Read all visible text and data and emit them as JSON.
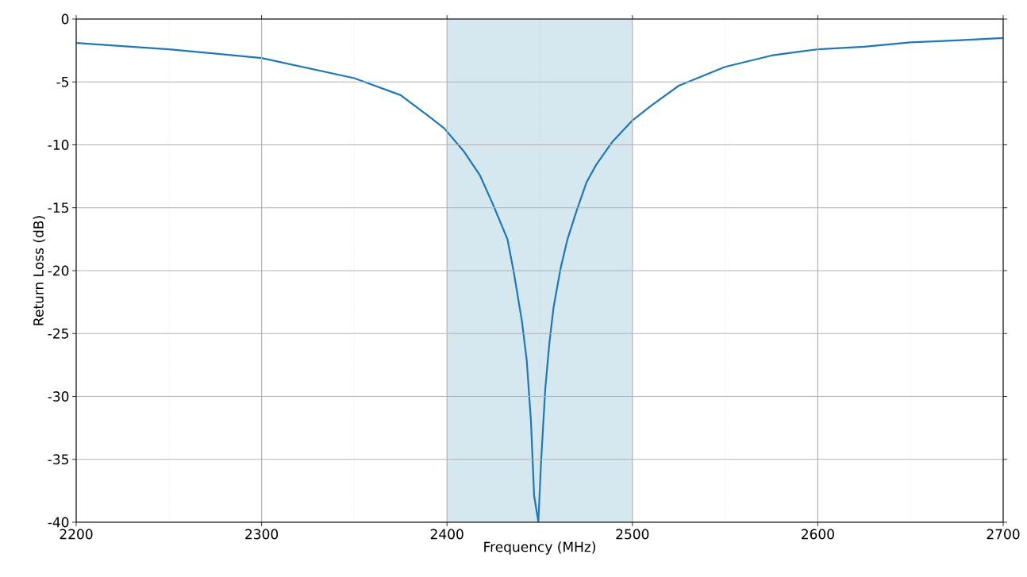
{
  "chart_data": {
    "type": "line",
    "xlabel": "Frequency (MHz)",
    "ylabel": "Return Loss (dB)",
    "xlim": [
      2200,
      2700
    ],
    "ylim": [
      -40,
      0
    ],
    "xticks": [
      2200,
      2300,
      2400,
      2500,
      2600,
      2700
    ],
    "yticks": [
      -40,
      -35,
      -30,
      -25,
      -20,
      -15,
      -10,
      -5,
      0
    ],
    "grid": true,
    "bands": [
      {
        "axis": "x",
        "from": 2400,
        "to": 2500,
        "color": "#d5e8ef"
      }
    ],
    "series": [
      {
        "color": "#1f77b4",
        "x": [
          2200,
          2250,
          2300,
          2350,
          2375,
          2390,
          2398.6,
          2409,
          2417.7,
          2424.7,
          2432.6,
          2436,
          2440.4,
          2443,
          2445.3,
          2447,
          2449.3,
          2450.7,
          2453,
          2455.2,
          2457.5,
          2461.3,
          2465,
          2470,
          2475.2,
          2480.4,
          2489,
          2499.7,
          2510,
          2525,
          2550,
          2575,
          2600,
          2625,
          2650,
          2675,
          2700
        ],
        "values": [
          -1.9,
          -2.4,
          -3.1,
          -4.7,
          -6.05,
          -7.7,
          -8.7,
          -10.5,
          -12.4,
          -14.7,
          -17.5,
          -20.1,
          -24.0,
          -27.1,
          -32,
          -37.9,
          -40,
          -35.3,
          -29.4,
          -25.8,
          -22.9,
          -19.8,
          -17.5,
          -15.2,
          -13.0,
          -11.6,
          -9.8,
          -8.1,
          -6.9,
          -5.3,
          -3.8,
          -2.9,
          -2.4,
          -2.2,
          -1.85,
          -1.7,
          -1.5
        ]
      }
    ]
  }
}
